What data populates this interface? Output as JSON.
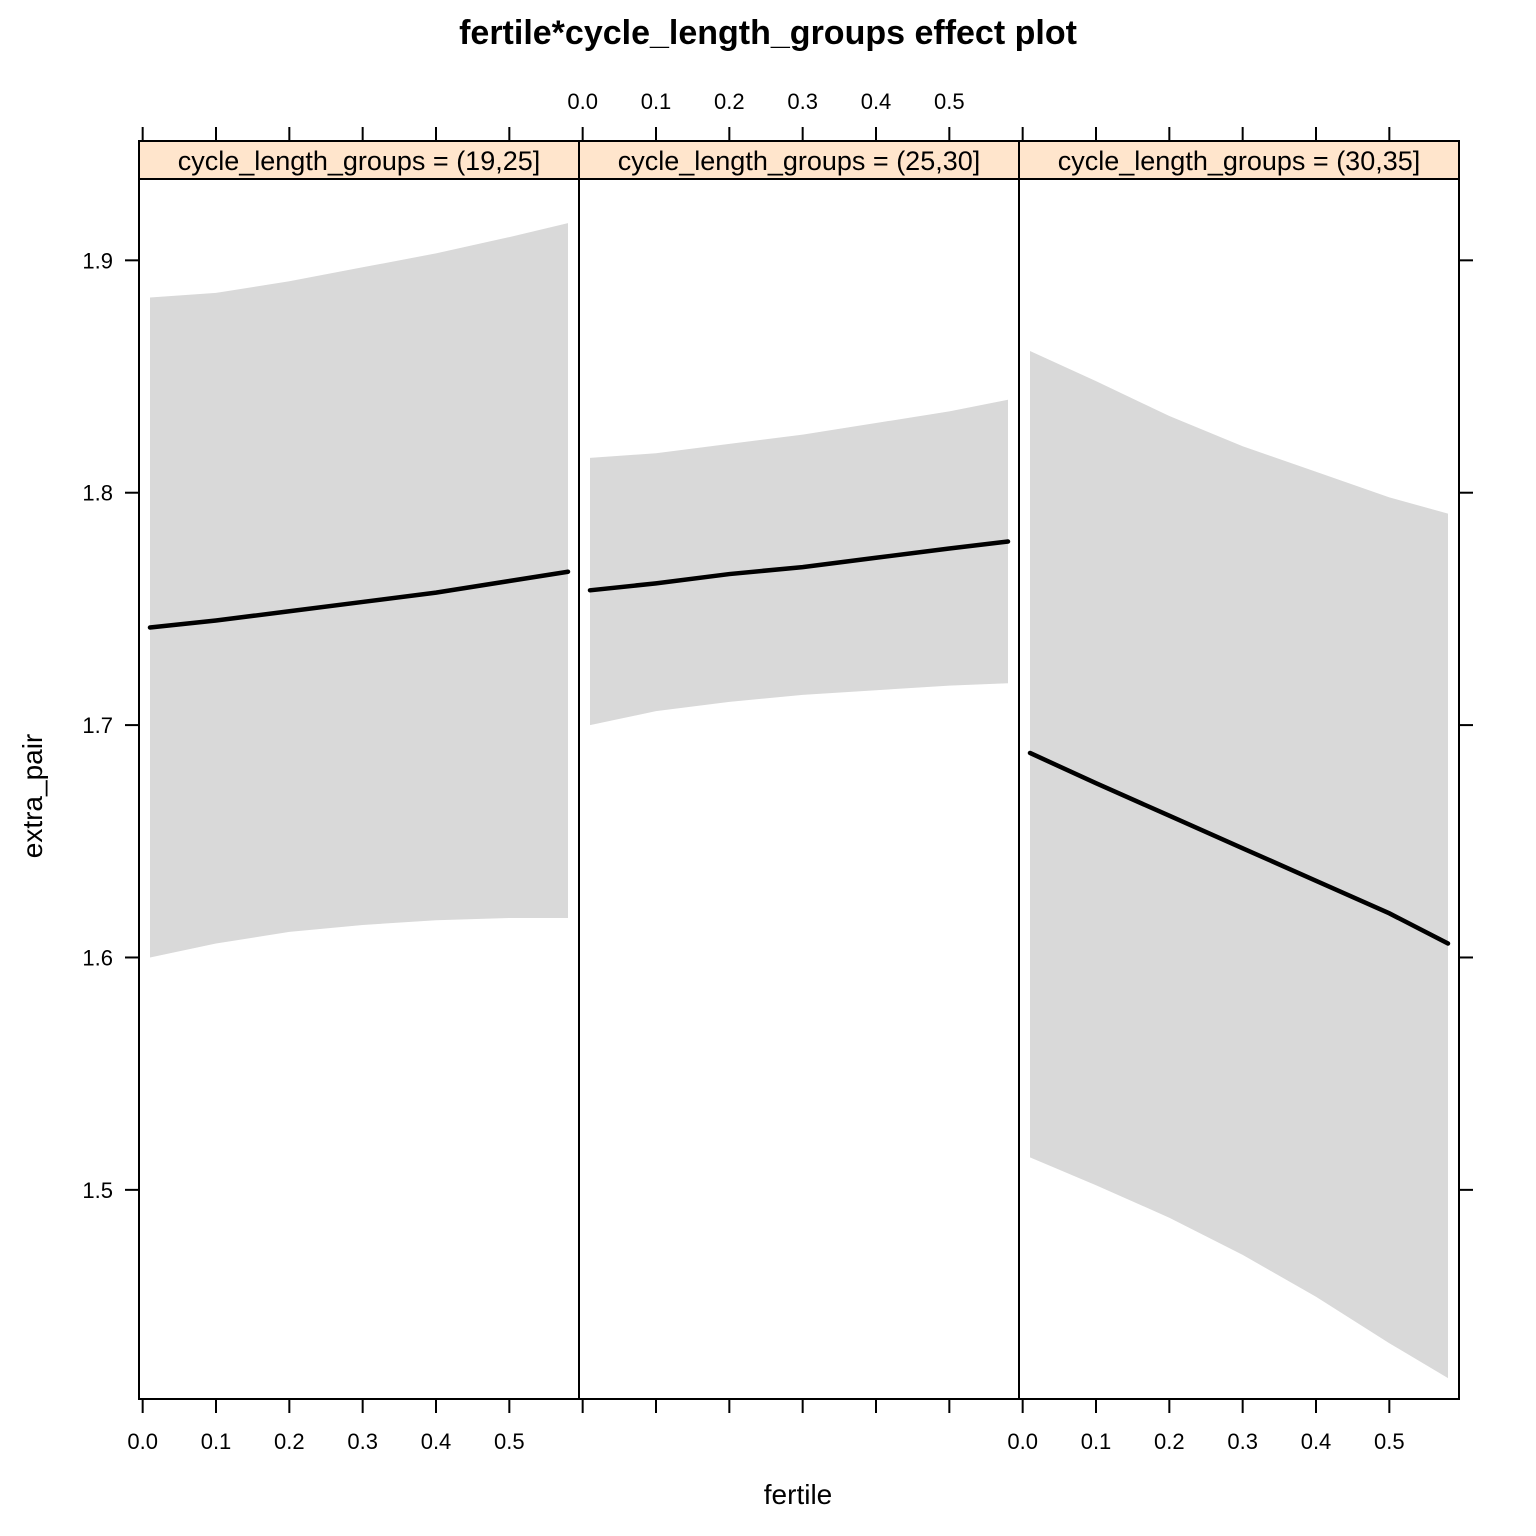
{
  "chart_data": {
    "type": "line",
    "title": "fertile*cycle_length_groups effect plot",
    "xlabel": "fertile",
    "ylabel": "extra_pair",
    "xlim": [
      -0.005,
      0.595
    ],
    "ylim": [
      1.41,
      1.935
    ],
    "x_ticks": [
      "0.0",
      "0.1",
      "0.2",
      "0.3",
      "0.4",
      "0.5"
    ],
    "y_ticks": [
      "1.5",
      "1.6",
      "1.7",
      "1.8",
      "1.9"
    ],
    "grid": false,
    "band_color": "#d9d9d9",
    "line_color": "#000000",
    "strip_color": "#ffe5cc",
    "panels": [
      {
        "label": "cycle_length_groups = (19,25]",
        "x": [
          0.01,
          0.1,
          0.2,
          0.3,
          0.4,
          0.5,
          0.58
        ],
        "fit": [
          1.742,
          1.745,
          1.749,
          1.753,
          1.757,
          1.762,
          1.766
        ],
        "lower": [
          1.6,
          1.606,
          1.611,
          1.614,
          1.616,
          1.617,
          1.617
        ],
        "upper": [
          1.884,
          1.886,
          1.891,
          1.897,
          1.903,
          1.91,
          1.916
        ]
      },
      {
        "label": "cycle_length_groups = (25,30]",
        "x": [
          0.01,
          0.1,
          0.2,
          0.3,
          0.4,
          0.5,
          0.58
        ],
        "fit": [
          1.758,
          1.761,
          1.765,
          1.768,
          1.772,
          1.776,
          1.779
        ],
        "lower": [
          1.7,
          1.706,
          1.71,
          1.713,
          1.715,
          1.717,
          1.718
        ],
        "upper": [
          1.815,
          1.817,
          1.821,
          1.825,
          1.83,
          1.835,
          1.84
        ]
      },
      {
        "label": "cycle_length_groups = (30,35]",
        "x": [
          0.01,
          0.1,
          0.2,
          0.3,
          0.4,
          0.5,
          0.58
        ],
        "fit": [
          1.688,
          1.675,
          1.661,
          1.647,
          1.633,
          1.619,
          1.606
        ],
        "lower": [
          1.514,
          1.502,
          1.488,
          1.472,
          1.454,
          1.434,
          1.419
        ],
        "upper": [
          1.861,
          1.848,
          1.833,
          1.82,
          1.809,
          1.798,
          1.791
        ]
      }
    ]
  }
}
